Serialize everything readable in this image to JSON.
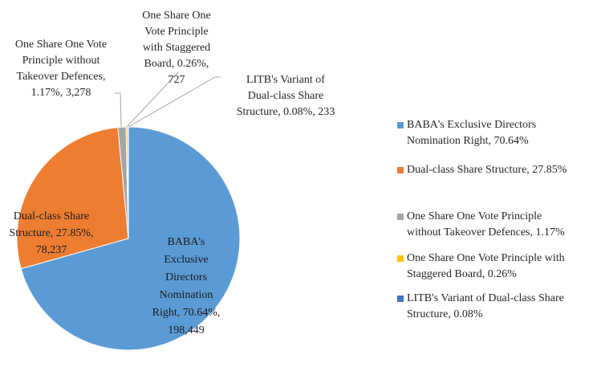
{
  "chart_data": {
    "type": "pie",
    "values": [
      70.64,
      27.85,
      1.17,
      0.26,
      0.08
    ],
    "colors": [
      "#5b9bd5",
      "#ed7d31",
      "#a5a5a5",
      "#ffc000",
      "#4472c4"
    ],
    "data_labels": [
      [
        "BABA's",
        "Exclusive",
        "Directors",
        "Nomination",
        "Right, 70.64%,",
        "198,449"
      ],
      [
        "Dual-class Share",
        "Structure, 27.85%,",
        "78,237"
      ],
      [
        "One Share One Vote",
        "Principle without",
        "Takeover Defences,",
        "1.17%, 3,278"
      ],
      [
        "One Share One",
        "Vote Principle",
        "with Staggered",
        "Board, 0.26%,",
        "727"
      ],
      [
        "LITB's Variant of",
        "Dual-class Share",
        "Structure, 0.08%, 233"
      ]
    ],
    "legend": [
      [
        "BABA's Exclusive Directors",
        "Nomination Right, 70.64%"
      ],
      [
        "Dual-class Share Structure, 27.85%"
      ],
      [
        "One Share One Vote Principle",
        "without Takeover Defences, 1.17%"
      ],
      [
        "One Share One Vote Principle with",
        "Staggered Board, 0.26%"
      ],
      [
        "LITB's Variant of Dual-class Share",
        "Structure, 0.08%"
      ]
    ]
  }
}
